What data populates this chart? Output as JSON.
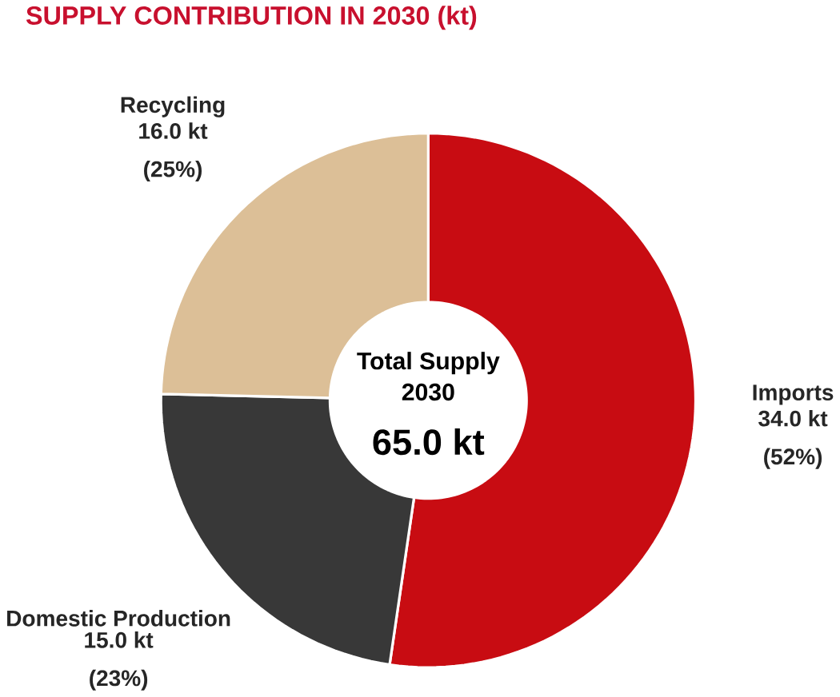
{
  "chart_data": {
    "type": "donut",
    "title": "SUPPLY CONTRIBUTION IN 2030 (kt)",
    "categories": [
      "Imports",
      "Domestic Production",
      "Recycling"
    ],
    "values": [
      34.0,
      15.0,
      16.0
    ],
    "colors": [
      "#c80c12",
      "#383838",
      "#dcbf97"
    ],
    "value_labels": [
      "34.0 kt (52%)",
      "15.0 kt (23%)",
      "16.0 kt (25%)"
    ],
    "annotations": [
      "Total Supply 2030",
      "65.0 kt"
    ]
  }
}
